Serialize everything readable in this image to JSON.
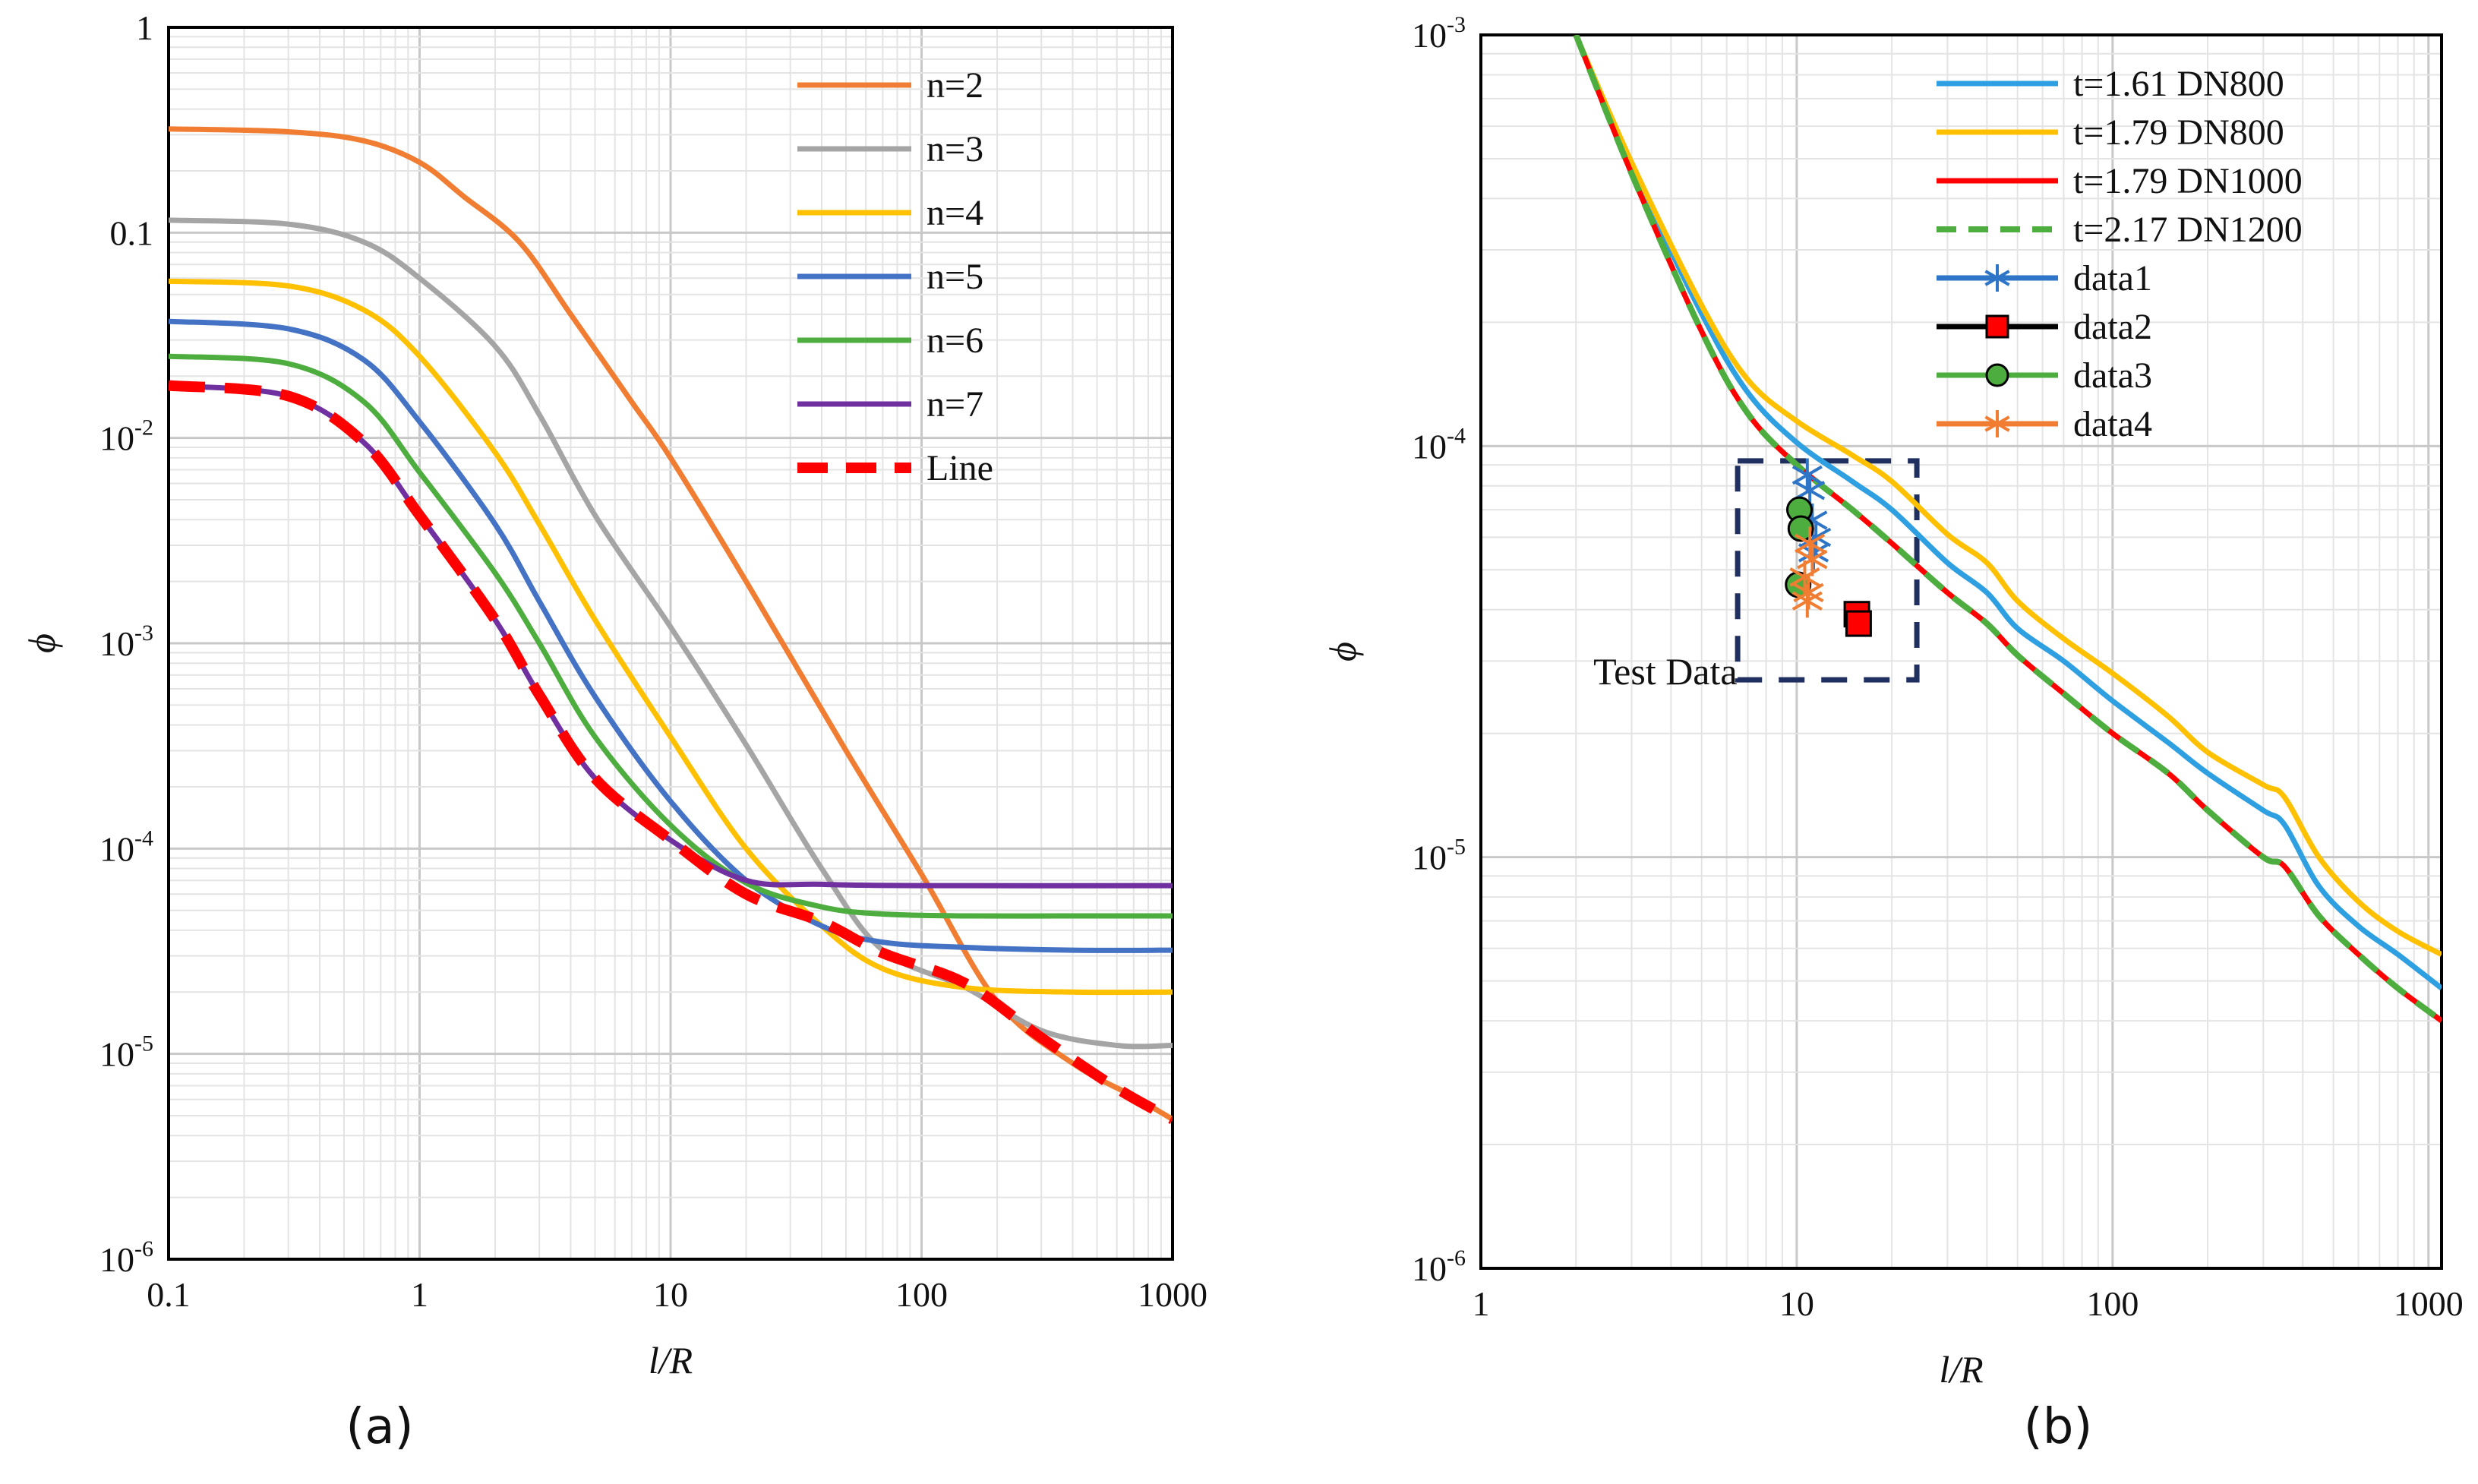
{
  "chart_data": [
    {
      "type": "line",
      "panel_label": "(a)",
      "xscale": "log",
      "yscale": "log",
      "xlim": [
        0.1,
        1000
      ],
      "ylim": [
        1e-06,
        1
      ],
      "xlabel": "l/R",
      "ylabel": "ϕ",
      "xticks": [
        {
          "v": 0.1,
          "label": "0.1"
        },
        {
          "v": 1,
          "label": "1"
        },
        {
          "v": 10,
          "label": "10"
        },
        {
          "v": 100,
          "label": "100"
        },
        {
          "v": 1000,
          "label": "1000"
        }
      ],
      "yticks": [
        {
          "v": 1,
          "label": "1"
        },
        {
          "v": 0.1,
          "label": "0.1"
        },
        {
          "v": 0.01,
          "base": "10",
          "exp": "-2"
        },
        {
          "v": 0.001,
          "base": "10",
          "exp": "-3"
        },
        {
          "v": 0.0001,
          "base": "10",
          "exp": "-4"
        },
        {
          "v": 1e-05,
          "base": "10",
          "exp": "-5"
        },
        {
          "v": 1e-06,
          "base": "10",
          "exp": "-6"
        }
      ],
      "legend_position": "top-right",
      "series": [
        {
          "name": "n=2",
          "color": "#F07D32",
          "style": "solid",
          "points": [
            [
              0.1,
              0.32
            ],
            [
              0.3,
              0.31
            ],
            [
              0.6,
              0.28
            ],
            [
              1,
              0.22
            ],
            [
              1.5,
              0.15
            ],
            [
              2.5,
              0.09
            ],
            [
              4,
              0.04
            ],
            [
              7,
              0.015
            ],
            [
              10,
              0.008
            ],
            [
              20,
              0.002
            ],
            [
              50,
              0.0003
            ],
            [
              100,
              7.5e-05
            ],
            [
              200,
              1.8e-05
            ],
            [
              400,
              9e-06
            ],
            [
              700,
              6.2e-06
            ],
            [
              1000,
              4.8e-06
            ]
          ]
        },
        {
          "name": "n=3",
          "color": "#A5A5A5",
          "style": "solid",
          "points": [
            [
              0.1,
              0.115
            ],
            [
              0.3,
              0.11
            ],
            [
              0.6,
              0.09
            ],
            [
              1,
              0.06
            ],
            [
              2,
              0.028
            ],
            [
              3,
              0.013
            ],
            [
              5,
              0.0042
            ],
            [
              10,
              0.0012
            ],
            [
              20,
              0.00032
            ],
            [
              40,
              8e-05
            ],
            [
              70,
              3.2e-05
            ],
            [
              150,
              2.1e-05
            ],
            [
              300,
              1.3e-05
            ],
            [
              600,
              1.1e-05
            ],
            [
              1000,
              1.1e-05
            ]
          ]
        },
        {
          "name": "n=4",
          "color": "#FFC000",
          "style": "solid",
          "points": [
            [
              0.1,
              0.058
            ],
            [
              0.3,
              0.055
            ],
            [
              0.6,
              0.042
            ],
            [
              1,
              0.025
            ],
            [
              2,
              0.0085
            ],
            [
              3,
              0.0038
            ],
            [
              5,
              0.0013
            ],
            [
              10,
              0.00035
            ],
            [
              20,
              0.0001
            ],
            [
              40,
              4.2e-05
            ],
            [
              70,
              2.6e-05
            ],
            [
              150,
              2.1e-05
            ],
            [
              400,
              2e-05
            ],
            [
              1000,
              2e-05
            ]
          ]
        },
        {
          "name": "n=5",
          "color": "#4472C4",
          "style": "solid",
          "points": [
            [
              0.1,
              0.037
            ],
            [
              0.3,
              0.034
            ],
            [
              0.6,
              0.024
            ],
            [
              1,
              0.012
            ],
            [
              2,
              0.0038
            ],
            [
              3,
              0.0016
            ],
            [
              5,
              0.00055
            ],
            [
              10,
              0.00017
            ],
            [
              20,
              7e-05
            ],
            [
              40,
              4.2e-05
            ],
            [
              70,
              3.5e-05
            ],
            [
              150,
              3.3e-05
            ],
            [
              400,
              3.2e-05
            ],
            [
              1000,
              3.2e-05
            ]
          ]
        },
        {
          "name": "n=6",
          "color": "#4EAD3F",
          "style": "solid",
          "points": [
            [
              0.1,
              0.025
            ],
            [
              0.3,
              0.023
            ],
            [
              0.6,
              0.015
            ],
            [
              1,
              0.0068
            ],
            [
              2,
              0.0022
            ],
            [
              3,
              0.001
            ],
            [
              5,
              0.00035
            ],
            [
              10,
              0.00013
            ],
            [
              20,
              6.8e-05
            ],
            [
              40,
              5.2e-05
            ],
            [
              70,
              4.8e-05
            ],
            [
              150,
              4.7e-05
            ],
            [
              400,
              4.7e-05
            ],
            [
              1000,
              4.7e-05
            ]
          ]
        },
        {
          "name": "n=7",
          "color": "#7030A0",
          "style": "solid",
          "points": [
            [
              0.1,
              0.018
            ],
            [
              0.3,
              0.016
            ],
            [
              0.6,
              0.0095
            ],
            [
              1,
              0.0042
            ],
            [
              2,
              0.0013
            ],
            [
              3,
              0.00056
            ],
            [
              5,
              0.00022
            ],
            [
              10,
              0.00011
            ],
            [
              20,
              7e-05
            ],
            [
              40,
              6.7e-05
            ],
            [
              100,
              6.6e-05
            ],
            [
              1000,
              6.6e-05
            ]
          ]
        },
        {
          "name": "Line",
          "color": "#FF0000",
          "style": "dashed",
          "points": [
            [
              0.1,
              0.018
            ],
            [
              0.3,
              0.016
            ],
            [
              0.6,
              0.0095
            ],
            [
              1,
              0.0042
            ],
            [
              2,
              0.0013
            ],
            [
              3,
              0.00056
            ],
            [
              5,
              0.00022
            ],
            [
              10,
              0.00011
            ],
            [
              20,
              6e-05
            ],
            [
              40,
              4.4e-05
            ],
            [
              70,
              3.1e-05
            ],
            [
              150,
              2.2e-05
            ],
            [
              300,
              1.2e-05
            ],
            [
              600,
              6.8e-06
            ],
            [
              1000,
              4.8e-06
            ]
          ]
        }
      ]
    },
    {
      "type": "line",
      "panel_label": "(b)",
      "xscale": "log",
      "yscale": "log",
      "xlim": [
        1,
        1100
      ],
      "ylim": [
        1e-06,
        0.001
      ],
      "xlabel": "l/R",
      "ylabel": "ϕ",
      "xticks": [
        {
          "v": 1,
          "label": "1"
        },
        {
          "v": 10,
          "label": "10"
        },
        {
          "v": 100,
          "label": "100"
        },
        {
          "v": 1000,
          "label": "1000"
        }
      ],
      "yticks": [
        {
          "v": 0.001,
          "base": "10",
          "exp": "-3"
        },
        {
          "v": 0.0001,
          "base": "10",
          "exp": "-4"
        },
        {
          "v": 1e-05,
          "base": "10",
          "exp": "-5"
        },
        {
          "v": 1e-06,
          "base": "10",
          "exp": "-6"
        }
      ],
      "legend_position": "top-right",
      "annotation": {
        "text": "Test Data",
        "box_x": [
          6.5,
          24
        ],
        "box_y": [
          2.7e-05,
          9.2e-05
        ]
      },
      "series": [
        {
          "name": "t=1.61 DN800",
          "color": "#2E9FE0",
          "style": "solid",
          "points": [
            [
              2,
              0.001
            ],
            [
              3,
              0.00048
            ],
            [
              5,
              0.00021
            ],
            [
              7,
              0.000135
            ],
            [
              10,
              0.000102
            ],
            [
              15,
              8.2e-05
            ],
            [
              20,
              7e-05
            ],
            [
              30,
              5.2e-05
            ],
            [
              40,
              4.4e-05
            ],
            [
              50,
              3.6e-05
            ],
            [
              70,
              3e-05
            ],
            [
              100,
              2.4e-05
            ],
            [
              150,
              1.9e-05
            ],
            [
              200,
              1.6e-05
            ],
            [
              300,
              1.3e-05
            ],
            [
              350,
              1.2e-05
            ],
            [
              450,
              8.5e-06
            ],
            [
              600,
              6.8e-06
            ],
            [
              800,
              5.8e-06
            ],
            [
              1100,
              4.8e-06
            ]
          ]
        },
        {
          "name": "t=1.79 DN800",
          "color": "#FFC000",
          "style": "solid",
          "points": [
            [
              2,
              0.001
            ],
            [
              3,
              0.00049
            ],
            [
              5,
              0.00022
            ],
            [
              7,
              0.000145
            ],
            [
              10,
              0.000115
            ],
            [
              15,
              9.5e-05
            ],
            [
              20,
              8.2e-05
            ],
            [
              30,
              6.1e-05
            ],
            [
              40,
              5.2e-05
            ],
            [
              50,
              4.2e-05
            ],
            [
              70,
              3.4e-05
            ],
            [
              100,
              2.8e-05
            ],
            [
              150,
              2.2e-05
            ],
            [
              200,
              1.8e-05
            ],
            [
              300,
              1.5e-05
            ],
            [
              350,
              1.4e-05
            ],
            [
              450,
              1e-05
            ],
            [
              600,
              7.8e-06
            ],
            [
              800,
              6.6e-06
            ],
            [
              1100,
              5.8e-06
            ]
          ]
        },
        {
          "name": "t=1.79 DN1000",
          "color": "#FF0000",
          "style": "solid",
          "points": [
            [
              2,
              0.001
            ],
            [
              3,
              0.00046
            ],
            [
              5,
              0.00019
            ],
            [
              7,
              0.00012
            ],
            [
              10,
              9e-05
            ],
            [
              15,
              7e-05
            ],
            [
              20,
              5.8e-05
            ],
            [
              30,
              4.4e-05
            ],
            [
              40,
              3.7e-05
            ],
            [
              50,
              3.1e-05
            ],
            [
              70,
              2.5e-05
            ],
            [
              100,
              2e-05
            ],
            [
              150,
              1.6e-05
            ],
            [
              200,
              1.3e-05
            ],
            [
              300,
              1e-05
            ],
            [
              350,
              9.5e-06
            ],
            [
              450,
              7.2e-06
            ],
            [
              600,
              5.8e-06
            ],
            [
              800,
              4.8e-06
            ],
            [
              1100,
              4e-06
            ]
          ]
        },
        {
          "name": "t=2.17 DN1200",
          "color": "#4EAD3F",
          "style": "dashed",
          "points": [
            [
              2,
              0.001
            ],
            [
              3,
              0.00046
            ],
            [
              5,
              0.00019
            ],
            [
              7,
              0.00012
            ],
            [
              10,
              9e-05
            ],
            [
              15,
              7e-05
            ],
            [
              20,
              5.8e-05
            ],
            [
              30,
              4.4e-05
            ],
            [
              40,
              3.7e-05
            ],
            [
              50,
              3.1e-05
            ],
            [
              70,
              2.5e-05
            ],
            [
              100,
              2e-05
            ],
            [
              150,
              1.6e-05
            ],
            [
              200,
              1.3e-05
            ],
            [
              300,
              1e-05
            ],
            [
              350,
              9.5e-06
            ],
            [
              450,
              7.2e-06
            ],
            [
              600,
              5.8e-06
            ],
            [
              800,
              4.8e-06
            ],
            [
              1100,
              4e-06
            ]
          ]
        },
        {
          "name": "data1",
          "color": "#2E75C8",
          "style": "marker",
          "marker": "asterisk",
          "points": [
            [
              10.8,
              8.5e-05
            ],
            [
              11,
              7.8e-05
            ],
            [
              11.2,
              6.6e-05
            ],
            [
              11.5,
              6e-05
            ],
            [
              11.3,
              5.5e-05
            ]
          ]
        },
        {
          "name": "data2",
          "color": "#FF0000",
          "edge": "#000000",
          "line": "#000000",
          "style": "marker",
          "marker": "square",
          "points": [
            [
              15.5,
              3.9e-05
            ],
            [
              15.7,
              3.7e-05
            ]
          ]
        },
        {
          "name": "data3",
          "color": "#4EAD3F",
          "edge": "#000000",
          "style": "marker",
          "marker": "circle",
          "points": [
            [
              10.2,
              7e-05
            ],
            [
              10.3,
              6.3e-05
            ],
            [
              10.1,
              4.6e-05
            ]
          ]
        },
        {
          "name": "data4",
          "color": "#F07D32",
          "style": "marker",
          "marker": "asterisk",
          "points": [
            [
              11,
              5.8e-05
            ],
            [
              11.2,
              5.3e-05
            ],
            [
              10.6,
              4.8e-05
            ],
            [
              10.9,
              4.4e-05
            ],
            [
              10.8,
              4.2e-05
            ]
          ]
        }
      ]
    }
  ]
}
